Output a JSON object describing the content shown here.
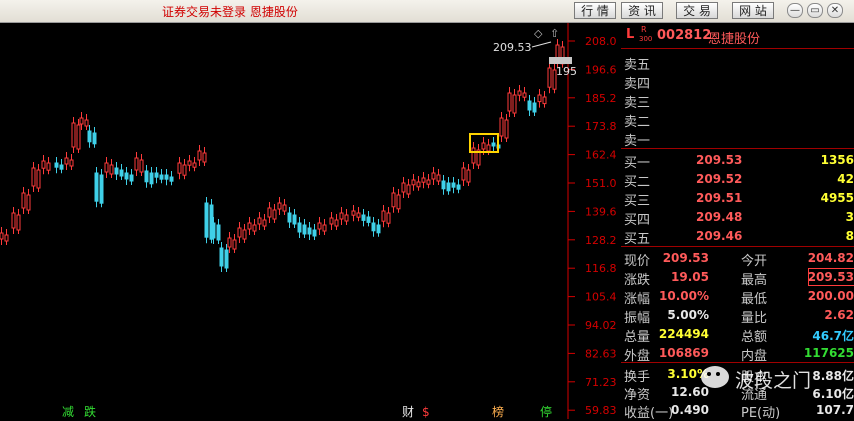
{
  "window": {
    "title": "证券交易未登录  恩捷股份",
    "nav": [
      "行 情",
      "资 讯",
      "交 易",
      "网 站"
    ],
    "controls": {
      "minimize": "—",
      "restore": "▭",
      "close": "✕"
    }
  },
  "stock": {
    "prefix": "L",
    "market_badge_top": "R",
    "market_badge_bottom": "300",
    "code": "002812",
    "name": "恩捷股份"
  },
  "axis": {
    "price_ticks": [
      "208.0",
      "196.6",
      "185.2",
      "173.8",
      "162.4",
      "151.0",
      "139.6",
      "128.2",
      "116.8",
      "105.4",
      "94.02",
      "82.63",
      "71.23",
      "59.83"
    ],
    "last_price_label": "209.53",
    "price_tag": "195",
    "price_min": 59.83,
    "price_max": 208.0,
    "colors": {
      "axis": "#d40000",
      "up": "#ff3b3b",
      "down": "#3fd0e8",
      "highlight": "#ffd400"
    }
  },
  "bottom_markers": [
    {
      "text": "减",
      "color": "#33dd33"
    },
    {
      "text": "跌",
      "color": "#33dd33"
    },
    {
      "text": "财",
      "color": "#e8e8e8"
    },
    {
      "text": "$",
      "color": "#ff3b3b"
    },
    {
      "text": "榜",
      "color": "#ffb050"
    },
    {
      "text": "停",
      "color": "#33dd33"
    }
  ],
  "sell_levels": [
    {
      "label": "卖五"
    },
    {
      "label": "卖四"
    },
    {
      "label": "卖三"
    },
    {
      "label": "卖二"
    },
    {
      "label": "卖一"
    }
  ],
  "buy_levels": [
    {
      "label": "买一",
      "price": "209.53",
      "volume": "1356"
    },
    {
      "label": "买二",
      "price": "209.52",
      "volume": "42"
    },
    {
      "label": "买三",
      "price": "209.51",
      "volume": "4955"
    },
    {
      "label": "买四",
      "price": "209.48",
      "volume": "3"
    },
    {
      "label": "买五",
      "price": "209.46",
      "volume": "8"
    }
  ],
  "stats": [
    {
      "l1": "现价",
      "v1": "209.53",
      "c1": "red",
      "l2": "今开",
      "v2": "204.82",
      "c2": "red"
    },
    {
      "l1": "涨跌",
      "v1": "19.05",
      "c1": "red",
      "l2": "最高",
      "v2": "209.53",
      "c2": "red"
    },
    {
      "l1": "涨幅",
      "v1": "10.00%",
      "c1": "red",
      "l2": "最低",
      "v2": "200.00",
      "c2": "red"
    },
    {
      "l1": "振幅",
      "v1": "5.00%",
      "c1": "white",
      "l2": "量比",
      "v2": "2.62",
      "c2": "red"
    },
    {
      "l1": "总量",
      "v1": "224494",
      "c1": "yel",
      "l2": "总额",
      "v2": "46.7亿",
      "c2": "cyan"
    },
    {
      "l1": "外盘",
      "v1": "106869",
      "c1": "red",
      "l2": "内盘",
      "v2": "117625",
      "c2": "green"
    },
    {
      "l1": "换手",
      "v1": "3.10%",
      "c1": "yel",
      "l2": "股本",
      "v2": "8.88亿",
      "c2": "white"
    },
    {
      "l1": "净资",
      "v1": "12.60",
      "c1": "white",
      "l2": "流通",
      "v2": "6.10亿",
      "c2": "white"
    },
    {
      "l1": "收益(一)",
      "v1": "0.490",
      "c1": "white",
      "l2": "PE(动)",
      "v2": "107.7",
      "c2": "white"
    }
  ],
  "watermark": "波段之门"
}
